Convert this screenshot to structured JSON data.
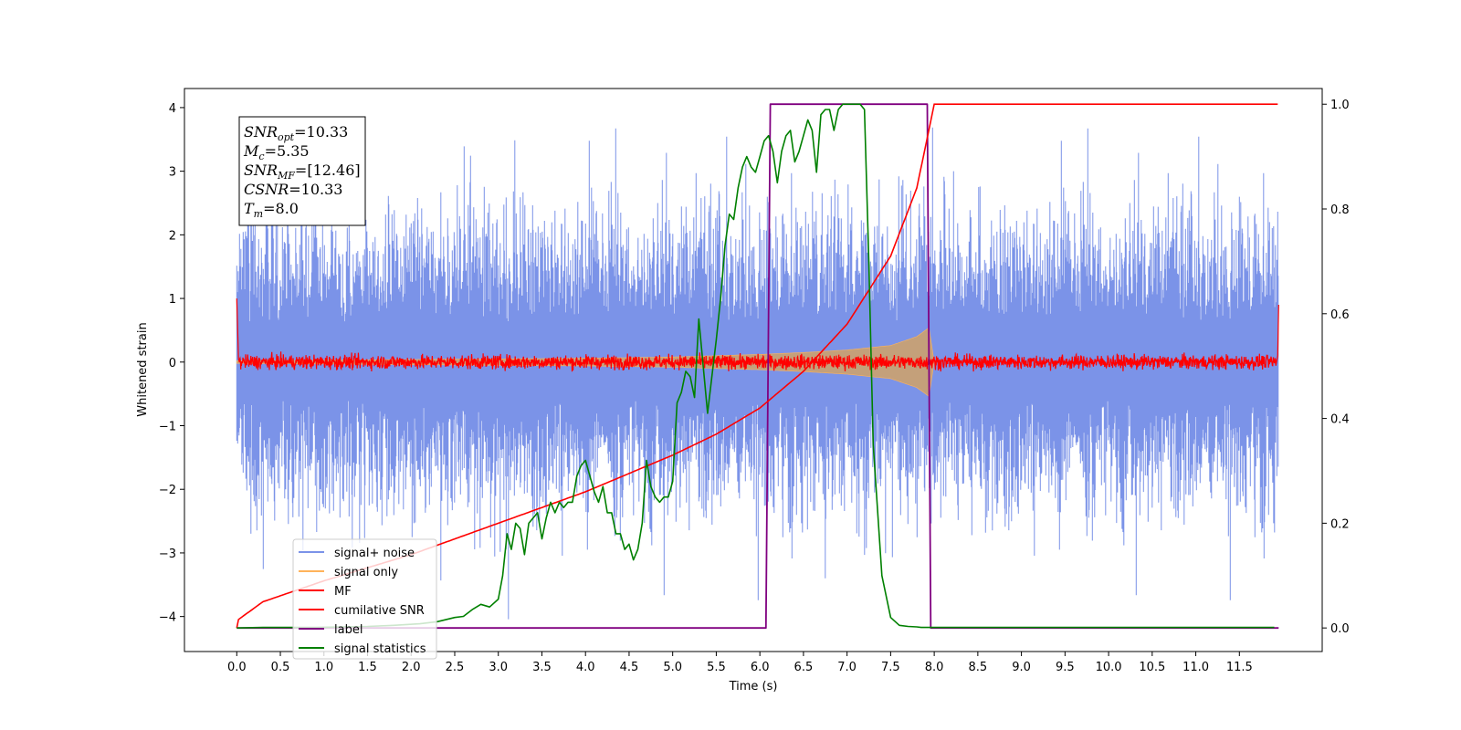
{
  "chart_data": {
    "type": "line",
    "xlabel": "Time (s)",
    "ylabel_left": "Whitened strain",
    "ylabel_right": "",
    "xlim": [
      -0.6,
      12.45
    ],
    "ylim_left": [
      -4.55,
      4.3
    ],
    "ylim_right": [
      -0.045,
      1.03
    ],
    "x_ticks": [
      "0.0",
      "0.5",
      "1.0",
      "1.5",
      "2.0",
      "2.5",
      "3.0",
      "3.5",
      "4.0",
      "4.5",
      "5.0",
      "5.5",
      "6.0",
      "6.5",
      "7.0",
      "7.5",
      "8.0",
      "8.5",
      "9.0",
      "9.5",
      "10.0",
      "10.5",
      "11.0",
      "11.5"
    ],
    "y_ticks_left": [
      "4",
      "3",
      "2",
      "1",
      "0",
      "−1",
      "−2",
      "−3",
      "−4"
    ],
    "y_ticks_right": [
      "1.0",
      "0.8",
      "0.6",
      "0.4",
      "0.2",
      "0.0"
    ],
    "legend": [
      "signal+ noise",
      "signal only",
      "MF",
      "cumilative SNR",
      "label",
      "signal statistics"
    ],
    "legend_position": "lower-left",
    "colors": {
      "signal_noise": "#7b93e8",
      "signal_only": "#ffb35a",
      "signal_fill": "#c4a07a",
      "mf": "#ff0000",
      "cumulative_snr": "#ff0000",
      "label": "#800080",
      "signal_statistics": "#008000"
    },
    "annotation": [
      {
        "name": "SNR",
        "sub": "opt",
        "value": "=10.33"
      },
      {
        "name": "M",
        "sub": "c",
        "value": "=5.35"
      },
      {
        "name": "SNR",
        "sub": "MF",
        "value": "=[12.46]"
      },
      {
        "name": "CSNR",
        "sub": "",
        "value": "=10.33"
      },
      {
        "name": "T",
        "sub": "m",
        "value": "=8.0"
      }
    ],
    "series": [
      {
        "name": "label",
        "axis": "right",
        "x": [
          0.0,
          6.07,
          6.12,
          7.92,
          7.96,
          11.95
        ],
        "y": [
          0.0,
          0.0,
          1.0,
          1.0,
          0.0,
          0.0
        ]
      },
      {
        "name": "cumilative SNR",
        "axis": "right",
        "x": [
          0.0,
          0.01,
          0.3,
          1.0,
          2.0,
          3.0,
          4.0,
          5.0,
          5.5,
          6.0,
          6.5,
          7.0,
          7.5,
          7.8,
          8.0,
          11.95
        ],
        "y": [
          0.0,
          0.015,
          0.05,
          0.09,
          0.14,
          0.2,
          0.26,
          0.33,
          0.37,
          0.42,
          0.49,
          0.58,
          0.71,
          0.84,
          1.0,
          1.0
        ]
      },
      {
        "name": "signal statistics",
        "axis": "right",
        "x": [
          0.0,
          0.3,
          0.6,
          0.9,
          1.2,
          1.5,
          1.8,
          2.1,
          2.3,
          2.5,
          2.6,
          2.7,
          2.8,
          2.9,
          3.0,
          3.05,
          3.1,
          3.15,
          3.2,
          3.25,
          3.3,
          3.35,
          3.4,
          3.45,
          3.5,
          3.55,
          3.6,
          3.65,
          3.7,
          3.75,
          3.8,
          3.85,
          3.9,
          3.95,
          4.0,
          4.05,
          4.1,
          4.15,
          4.2,
          4.25,
          4.3,
          4.35,
          4.4,
          4.45,
          4.5,
          4.55,
          4.6,
          4.65,
          4.7,
          4.75,
          4.8,
          4.85,
          4.9,
          4.95,
          5.0,
          5.05,
          5.1,
          5.15,
          5.2,
          5.25,
          5.3,
          5.35,
          5.4,
          5.45,
          5.5,
          5.55,
          5.6,
          5.65,
          5.7,
          5.75,
          5.8,
          5.85,
          5.9,
          5.95,
          6.0,
          6.05,
          6.1,
          6.15,
          6.2,
          6.25,
          6.3,
          6.35,
          6.4,
          6.45,
          6.5,
          6.55,
          6.6,
          6.65,
          6.7,
          6.75,
          6.8,
          6.85,
          6.9,
          6.95,
          7.0,
          7.05,
          7.1,
          7.15,
          7.2,
          7.25,
          7.3,
          7.4,
          7.5,
          7.6,
          7.7,
          7.8,
          7.85,
          7.9,
          7.95,
          8.0,
          8.05,
          8.1,
          8.2,
          8.5,
          9.0,
          10.0,
          11.0,
          11.9
        ],
        "y": [
          0.0,
          0.001,
          0.001,
          0.001,
          0.002,
          0.003,
          0.005,
          0.008,
          0.012,
          0.02,
          0.022,
          0.035,
          0.045,
          0.04,
          0.055,
          0.1,
          0.18,
          0.15,
          0.2,
          0.19,
          0.14,
          0.2,
          0.21,
          0.22,
          0.17,
          0.21,
          0.24,
          0.22,
          0.24,
          0.23,
          0.24,
          0.24,
          0.29,
          0.31,
          0.32,
          0.29,
          0.26,
          0.24,
          0.27,
          0.22,
          0.22,
          0.18,
          0.18,
          0.15,
          0.16,
          0.13,
          0.15,
          0.2,
          0.32,
          0.27,
          0.25,
          0.24,
          0.25,
          0.25,
          0.28,
          0.43,
          0.45,
          0.49,
          0.48,
          0.44,
          0.59,
          0.5,
          0.41,
          0.48,
          0.55,
          0.63,
          0.73,
          0.79,
          0.78,
          0.84,
          0.88,
          0.9,
          0.88,
          0.87,
          0.9,
          0.93,
          0.94,
          0.91,
          0.85,
          0.91,
          0.94,
          0.95,
          0.89,
          0.91,
          0.94,
          0.97,
          0.95,
          0.87,
          0.98,
          0.99,
          0.99,
          0.95,
          0.99,
          1.0,
          1.0,
          1.0,
          1.0,
          1.0,
          0.99,
          0.7,
          0.35,
          0.1,
          0.02,
          0.005,
          0.003,
          0.002,
          0.001,
          0.001,
          0.001,
          0.001,
          0.001,
          0.001,
          0.001,
          0.001,
          0.001,
          0.001,
          0.001,
          0.001
        ]
      },
      {
        "name": "signal only",
        "axis": "left",
        "envelope_x": [
          0.0,
          1.0,
          2.0,
          3.0,
          4.0,
          5.0,
          5.5,
          6.0,
          6.5,
          7.0,
          7.5,
          7.8,
          7.95,
          8.0
        ],
        "envelope_y": [
          0.02,
          0.03,
          0.04,
          0.05,
          0.06,
          0.08,
          0.1,
          0.12,
          0.15,
          0.19,
          0.26,
          0.4,
          0.55,
          0.0
        ]
      },
      {
        "name": "signal+ noise",
        "axis": "left",
        "x_range": [
          0.0,
          11.95
        ],
        "y_peak_range": [
          -4.1,
          3.9
        ]
      },
      {
        "name": "MF",
        "axis": "left",
        "x_range": [
          0.0,
          11.95
        ],
        "y_edges": [
          1.0,
          0.9
        ],
        "y_noise_range": [
          -0.15,
          0.2
        ]
      }
    ]
  }
}
